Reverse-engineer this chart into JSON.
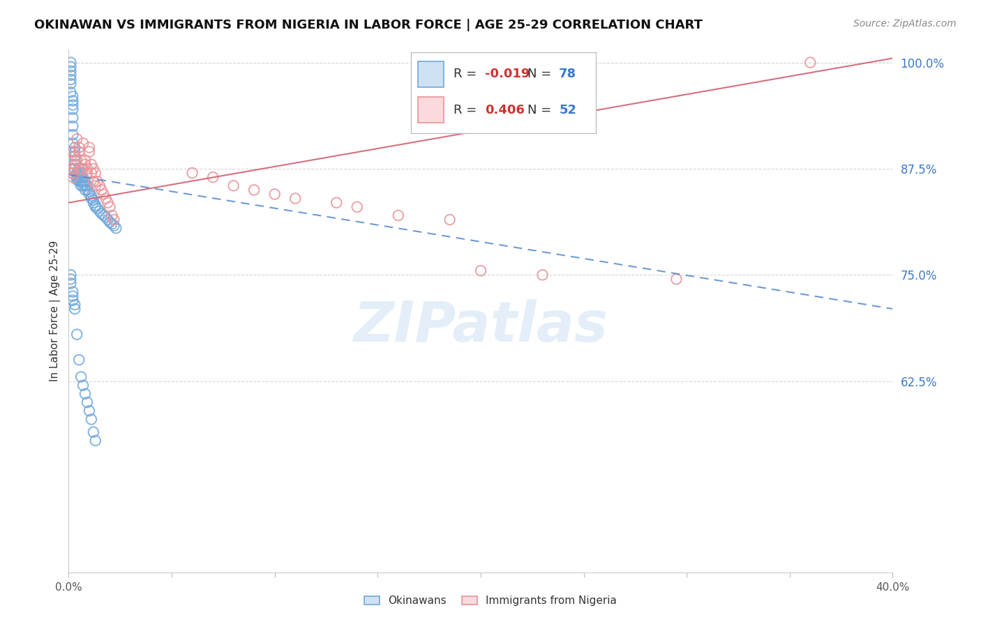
{
  "title": "OKINAWAN VS IMMIGRANTS FROM NIGERIA IN LABOR FORCE | AGE 25-29 CORRELATION CHART",
  "source": "Source: ZipAtlas.com",
  "ylabel": "In Labor Force | Age 25-29",
  "xlim": [
    0.0,
    0.4
  ],
  "ylim": [
    0.4,
    1.015
  ],
  "ytick_positions": [
    1.0,
    0.875,
    0.75,
    0.625
  ],
  "ytick_labels": [
    "100.0%",
    "87.5%",
    "75.0%",
    "62.5%"
  ],
  "legend_R1": "-0.019",
  "legend_N1": "78",
  "legend_R2": "0.406",
  "legend_N2": "52",
  "blue_color": "#6fa8dc",
  "pink_color": "#e8949a",
  "trend_blue_color": "#5588cc",
  "trend_pink_color": "#d06070",
  "watermark": "ZIPatlas",
  "watermark_color": "#c5daf0",
  "background_color": "#ffffff",
  "grid_color": "#cccccc",
  "right_ytick_color": "#3a78c9",
  "title_color": "#111111",
  "source_color": "#888888",
  "label_color": "#333333",
  "blue_x": [
    0.001,
    0.001,
    0.001,
    0.001,
    0.001,
    0.001,
    0.001,
    0.002,
    0.002,
    0.002,
    0.002,
    0.002,
    0.002,
    0.002,
    0.002,
    0.003,
    0.003,
    0.003,
    0.003,
    0.003,
    0.003,
    0.004,
    0.004,
    0.004,
    0.004,
    0.004,
    0.005,
    0.005,
    0.005,
    0.005,
    0.006,
    0.006,
    0.006,
    0.006,
    0.007,
    0.007,
    0.007,
    0.008,
    0.008,
    0.008,
    0.009,
    0.009,
    0.01,
    0.01,
    0.011,
    0.011,
    0.012,
    0.012,
    0.013,
    0.013,
    0.014,
    0.015,
    0.016,
    0.017,
    0.018,
    0.019,
    0.02,
    0.021,
    0.022,
    0.023,
    0.001,
    0.001,
    0.001,
    0.002,
    0.002,
    0.002,
    0.003,
    0.003,
    0.004,
    0.005,
    0.006,
    0.007,
    0.008,
    0.009,
    0.01,
    0.011,
    0.012,
    0.013
  ],
  "blue_y": [
    1.0,
    0.995,
    0.99,
    0.985,
    0.98,
    0.975,
    0.965,
    0.96,
    0.955,
    0.95,
    0.945,
    0.935,
    0.925,
    0.915,
    0.905,
    0.9,
    0.895,
    0.89,
    0.885,
    0.88,
    0.875,
    0.87,
    0.868,
    0.866,
    0.864,
    0.862,
    0.875,
    0.87,
    0.865,
    0.86,
    0.87,
    0.865,
    0.86,
    0.855,
    0.865,
    0.86,
    0.855,
    0.86,
    0.855,
    0.85,
    0.855,
    0.85,
    0.848,
    0.845,
    0.843,
    0.84,
    0.838,
    0.835,
    0.832,
    0.83,
    0.828,
    0.825,
    0.822,
    0.82,
    0.818,
    0.815,
    0.812,
    0.81,
    0.808,
    0.805,
    0.75,
    0.745,
    0.74,
    0.73,
    0.725,
    0.72,
    0.715,
    0.71,
    0.68,
    0.65,
    0.63,
    0.62,
    0.61,
    0.6,
    0.59,
    0.58,
    0.565,
    0.555
  ],
  "pink_x": [
    0.001,
    0.001,
    0.001,
    0.002,
    0.002,
    0.002,
    0.002,
    0.003,
    0.003,
    0.004,
    0.004,
    0.005,
    0.005,
    0.006,
    0.006,
    0.007,
    0.007,
    0.008,
    0.008,
    0.009,
    0.009,
    0.01,
    0.01,
    0.011,
    0.011,
    0.012,
    0.012,
    0.013,
    0.013,
    0.014,
    0.015,
    0.016,
    0.017,
    0.018,
    0.019,
    0.02,
    0.021,
    0.022,
    0.06,
    0.07,
    0.08,
    0.09,
    0.1,
    0.11,
    0.13,
    0.14,
    0.16,
    0.185,
    0.2,
    0.23,
    0.295,
    0.36
  ],
  "pink_y": [
    0.875,
    0.87,
    0.895,
    0.875,
    0.87,
    0.865,
    0.895,
    0.89,
    0.88,
    0.885,
    0.91,
    0.9,
    0.895,
    0.885,
    0.875,
    0.905,
    0.875,
    0.885,
    0.88,
    0.875,
    0.87,
    0.9,
    0.895,
    0.88,
    0.87,
    0.875,
    0.86,
    0.855,
    0.87,
    0.86,
    0.855,
    0.85,
    0.845,
    0.84,
    0.835,
    0.83,
    0.82,
    0.815,
    0.87,
    0.865,
    0.855,
    0.85,
    0.845,
    0.84,
    0.835,
    0.83,
    0.82,
    0.815,
    0.755,
    0.75,
    0.745,
    1.0
  ],
  "blue_trend_x": [
    0.0,
    0.4
  ],
  "blue_trend_y": [
    0.868,
    0.71
  ],
  "pink_trend_x": [
    0.0,
    0.4
  ],
  "pink_trend_y": [
    0.835,
    1.005
  ]
}
